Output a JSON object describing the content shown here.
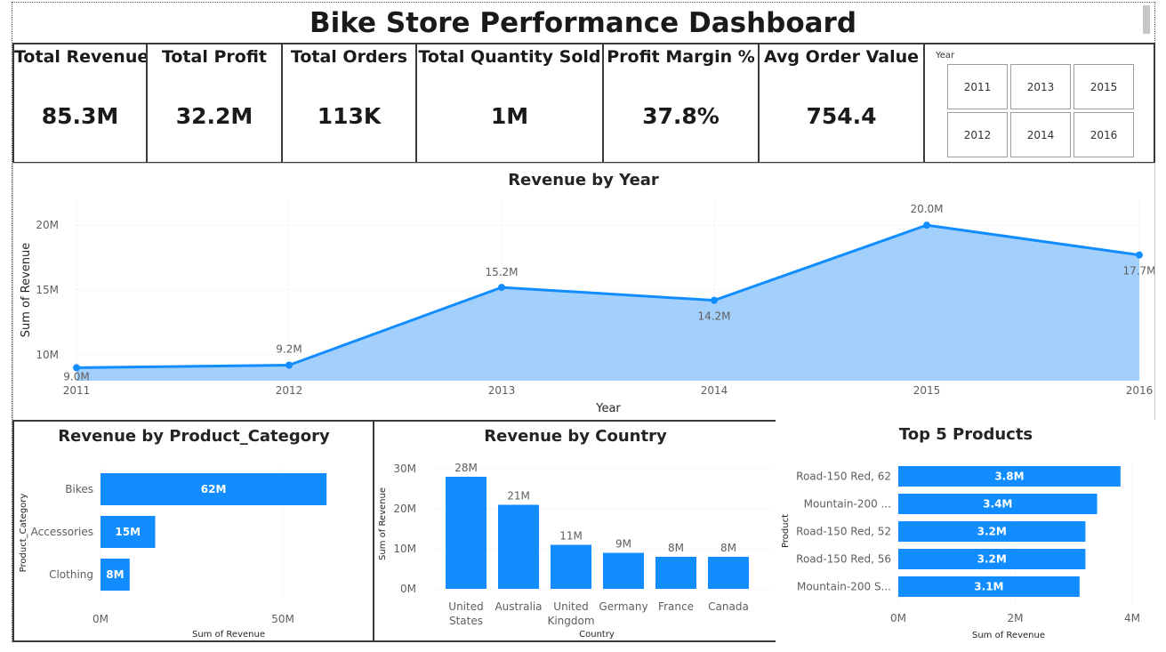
{
  "title": "Bike Store Performance Dashboard",
  "kpis": [
    {
      "label": "Total Revenue",
      "value": "85.3M"
    },
    {
      "label": "Total Profit",
      "value": "32.2M"
    },
    {
      "label": "Total Orders",
      "value": "113K"
    },
    {
      "label": "Total Quantity Sold",
      "value": "1M"
    },
    {
      "label": "Profit Margin %",
      "value": "37.8%"
    },
    {
      "label": "Avg Order Value",
      "value": "754.4"
    }
  ],
  "slicer": {
    "title": "Year",
    "options": [
      "2011",
      "2013",
      "2015",
      "2012",
      "2014",
      "2016"
    ]
  },
  "colors": {
    "accent": "#118dff",
    "area_fill": "#a3cffd"
  },
  "chart_data": [
    {
      "type": "area",
      "title": "Revenue by Year",
      "xlabel": "Year",
      "ylabel": "Sum of Revenue",
      "x": [
        "2011",
        "2012",
        "2013",
        "2014",
        "2015",
        "2016"
      ],
      "values": [
        9.0,
        9.2,
        15.2,
        14.2,
        20.0,
        17.7
      ],
      "data_labels": [
        "9.0M",
        "9.2M",
        "15.2M",
        "14.2M",
        "20.0M",
        "17.7M"
      ],
      "yticks": [
        "10M",
        "15M",
        "20M"
      ],
      "ylim": [
        8,
        22
      ],
      "grid": true
    },
    {
      "type": "bar",
      "orientation": "horizontal",
      "title": "Revenue by Product_Category",
      "xlabel": "Sum of Revenue",
      "ylabel": "Product_Category",
      "categories": [
        "Bikes",
        "Accessories",
        "Clothing"
      ],
      "values": [
        62,
        15,
        8
      ],
      "data_labels": [
        "62M",
        "15M",
        "8M"
      ],
      "xticks": [
        "0M",
        "50M"
      ],
      "xlim": [
        0,
        60
      ]
    },
    {
      "type": "bar",
      "title": "Revenue by Country",
      "xlabel": "Country",
      "ylabel": "Sum of Revenue",
      "categories": [
        "United States",
        "Australia",
        "United Kingdom",
        "Germany",
        "France",
        "Canada"
      ],
      "values": [
        28,
        21,
        11,
        9,
        8,
        8
      ],
      "data_labels": [
        "28M",
        "21M",
        "11M",
        "9M",
        "8M",
        "8M"
      ],
      "yticks": [
        "0M",
        "10M",
        "20M",
        "30M"
      ],
      "ylim": [
        0,
        30
      ]
    },
    {
      "type": "bar",
      "orientation": "horizontal",
      "title": "Top 5 Products",
      "xlabel": "Sum of Revenue",
      "ylabel": "Product",
      "categories": [
        "Road-150 Red, 62",
        "Mountain-200 ...",
        "Road-150 Red, 52",
        "Road-150 Red, 56",
        "Mountain-200 S..."
      ],
      "values": [
        3.8,
        3.4,
        3.2,
        3.2,
        3.1
      ],
      "data_labels": [
        "3.8M",
        "3.4M",
        "3.2M",
        "3.2M",
        "3.1M"
      ],
      "xticks": [
        "0M",
        "2M",
        "4M"
      ],
      "xlim": [
        0,
        4
      ]
    }
  ]
}
